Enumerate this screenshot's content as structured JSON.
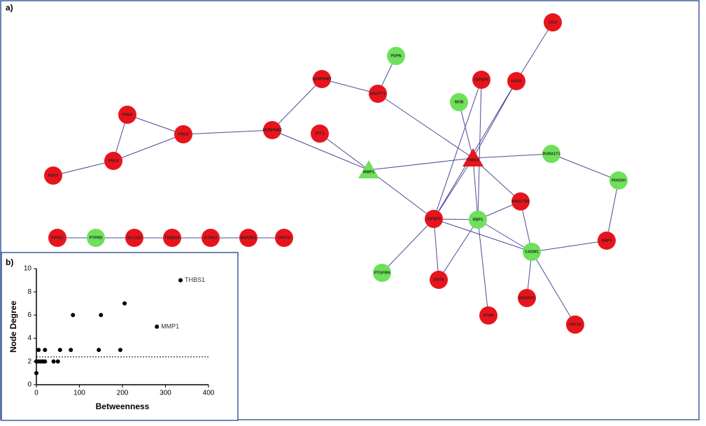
{
  "panel_a": "a)",
  "network": {
    "nodes": [
      {
        "label": "CIC2",
        "color": "#e8141c",
        "shape": "circle"
      },
      {
        "label": "HAS2",
        "color": "#e8141c",
        "shape": "circle"
      },
      {
        "label": "IGFBP5",
        "color": "#e8141c",
        "shape": "circle"
      },
      {
        "label": "PDPN",
        "color": "#6ee05a",
        "shape": "circle"
      },
      {
        "label": "ANGPT1",
        "color": "#e8141c",
        "shape": "circle"
      },
      {
        "label": "SERPINB7",
        "color": "#e8141c",
        "shape": "circle"
      },
      {
        "label": "NFIB",
        "color": "#6ee05a",
        "shape": "circle"
      },
      {
        "label": "PSG5",
        "color": "#e8141c",
        "shape": "circle"
      },
      {
        "label": "PSG3",
        "color": "#e8141c",
        "shape": "circle"
      },
      {
        "label": "SERPINB2",
        "color": "#e8141c",
        "shape": "circle"
      },
      {
        "label": "STT1",
        "color": "#e8141c",
        "shape": "circle"
      },
      {
        "label": "PSG4",
        "color": "#e8141c",
        "shape": "circle"
      },
      {
        "label": "PSG9",
        "color": "#e8141c",
        "shape": "circle"
      },
      {
        "label": "MMP1",
        "color": "#6ee05a",
        "shape": "triangle"
      },
      {
        "label": "THBS1",
        "color": "#e8141c",
        "shape": "triangle"
      },
      {
        "label": "RUNX1T1",
        "color": "#6ee05a",
        "shape": "circle"
      },
      {
        "label": "PHGDH",
        "color": "#6ee05a",
        "shape": "circle"
      },
      {
        "label": "HSD17B6",
        "color": "#e8141c",
        "shape": "circle"
      },
      {
        "label": "IGFBP3",
        "color": "#e8141c",
        "shape": "circle"
      },
      {
        "label": "RBP1",
        "color": "#6ee05a",
        "shape": "circle"
      },
      {
        "label": "RBP4",
        "color": "#e8141c",
        "shape": "circle"
      },
      {
        "label": "CADM1",
        "color": "#6ee05a",
        "shape": "circle"
      },
      {
        "label": "PTGFRN",
        "color": "#6ee05a",
        "shape": "circle"
      },
      {
        "label": "DSTN",
        "color": "#e8141c",
        "shape": "circle"
      },
      {
        "label": "SEMA3C",
        "color": "#e8141c",
        "shape": "circle"
      },
      {
        "label": "SYNM",
        "color": "#e8141c",
        "shape": "circle"
      },
      {
        "label": "KRT19",
        "color": "#e8141c",
        "shape": "circle"
      },
      {
        "label": "FOXE1",
        "color": "#e8141c",
        "shape": "circle"
      },
      {
        "label": "PTPRD",
        "color": "#6ee05a",
        "shape": "circle"
      },
      {
        "label": "SLC1A3",
        "color": "#e8141c",
        "shape": "circle"
      },
      {
        "label": "TUBB2A",
        "color": "#e8141c",
        "shape": "circle"
      },
      {
        "label": "DYRK3",
        "color": "#e8141c",
        "shape": "circle"
      },
      {
        "label": "ANKRD1",
        "color": "#e8141c",
        "shape": "circle"
      },
      {
        "label": "CRTC3",
        "color": "#e8141c",
        "shape": "circle"
      }
    ]
  },
  "panel_b": "b)",
  "chart_data": {
    "type": "scatter",
    "xlabel": "Betweenness",
    "ylabel": "Node Degree",
    "x": [
      0,
      0,
      5,
      5,
      10,
      15,
      20,
      20,
      40,
      50,
      55,
      80,
      85,
      145,
      150,
      195,
      205,
      280,
      335
    ],
    "y": [
      1,
      2,
      2,
      3,
      2,
      2,
      2,
      3,
      2,
      2,
      3,
      3,
      6,
      3,
      6,
      3,
      7,
      5,
      9
    ],
    "point_labels": [
      null,
      null,
      null,
      null,
      null,
      null,
      null,
      null,
      null,
      null,
      null,
      null,
      null,
      null,
      null,
      null,
      null,
      "MMP1",
      "THBS1"
    ],
    "color": "#000000",
    "threshold": 2.4,
    "xlim": [
      0,
      400
    ],
    "xticks": [
      0,
      100,
      200,
      300,
      400
    ],
    "ylim": [
      0,
      10
    ],
    "yticks": [
      0,
      2,
      4,
      6,
      8,
      10
    ]
  }
}
